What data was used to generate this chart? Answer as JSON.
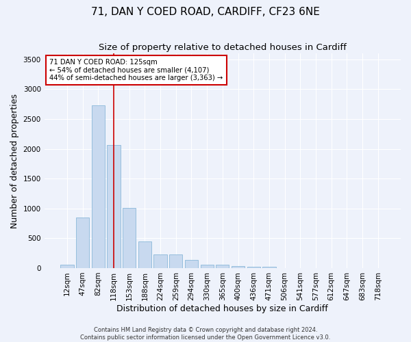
{
  "title_line1": "71, DAN Y COED ROAD, CARDIFF, CF23 6NE",
  "title_line2": "Size of property relative to detached houses in Cardiff",
  "xlabel": "Distribution of detached houses by size in Cardiff",
  "ylabel": "Number of detached properties",
  "bar_color": "#c8d9ef",
  "bar_edge_color": "#7aafd4",
  "categories": [
    "12sqm",
    "47sqm",
    "82sqm",
    "118sqm",
    "153sqm",
    "188sqm",
    "224sqm",
    "259sqm",
    "294sqm",
    "330sqm",
    "365sqm",
    "400sqm",
    "436sqm",
    "471sqm",
    "506sqm",
    "541sqm",
    "577sqm",
    "612sqm",
    "647sqm",
    "683sqm",
    "718sqm"
  ],
  "values": [
    60,
    850,
    2730,
    2060,
    1010,
    450,
    230,
    230,
    140,
    60,
    55,
    30,
    25,
    20,
    5,
    5,
    2,
    1,
    1,
    1,
    1
  ],
  "ylim": [
    0,
    3600
  ],
  "yticks": [
    0,
    500,
    1000,
    1500,
    2000,
    2500,
    3000,
    3500
  ],
  "vline_x": 3,
  "annotation_text": "71 DAN Y COED ROAD: 125sqm\n← 54% of detached houses are smaller (4,107)\n44% of semi-detached houses are larger (3,363) →",
  "annotation_box_color": "#ffffff",
  "annotation_border_color": "#cc0000",
  "vline_color": "#cc0000",
  "background_color": "#eef2fb",
  "grid_color": "#ffffff",
  "footer_text": "Contains HM Land Registry data © Crown copyright and database right 2024.\nContains public sector information licensed under the Open Government Licence v3.0.",
  "title_fontsize": 11,
  "subtitle_fontsize": 9.5,
  "axis_label_fontsize": 9,
  "tick_fontsize": 7.5,
  "footer_fontsize": 6
}
